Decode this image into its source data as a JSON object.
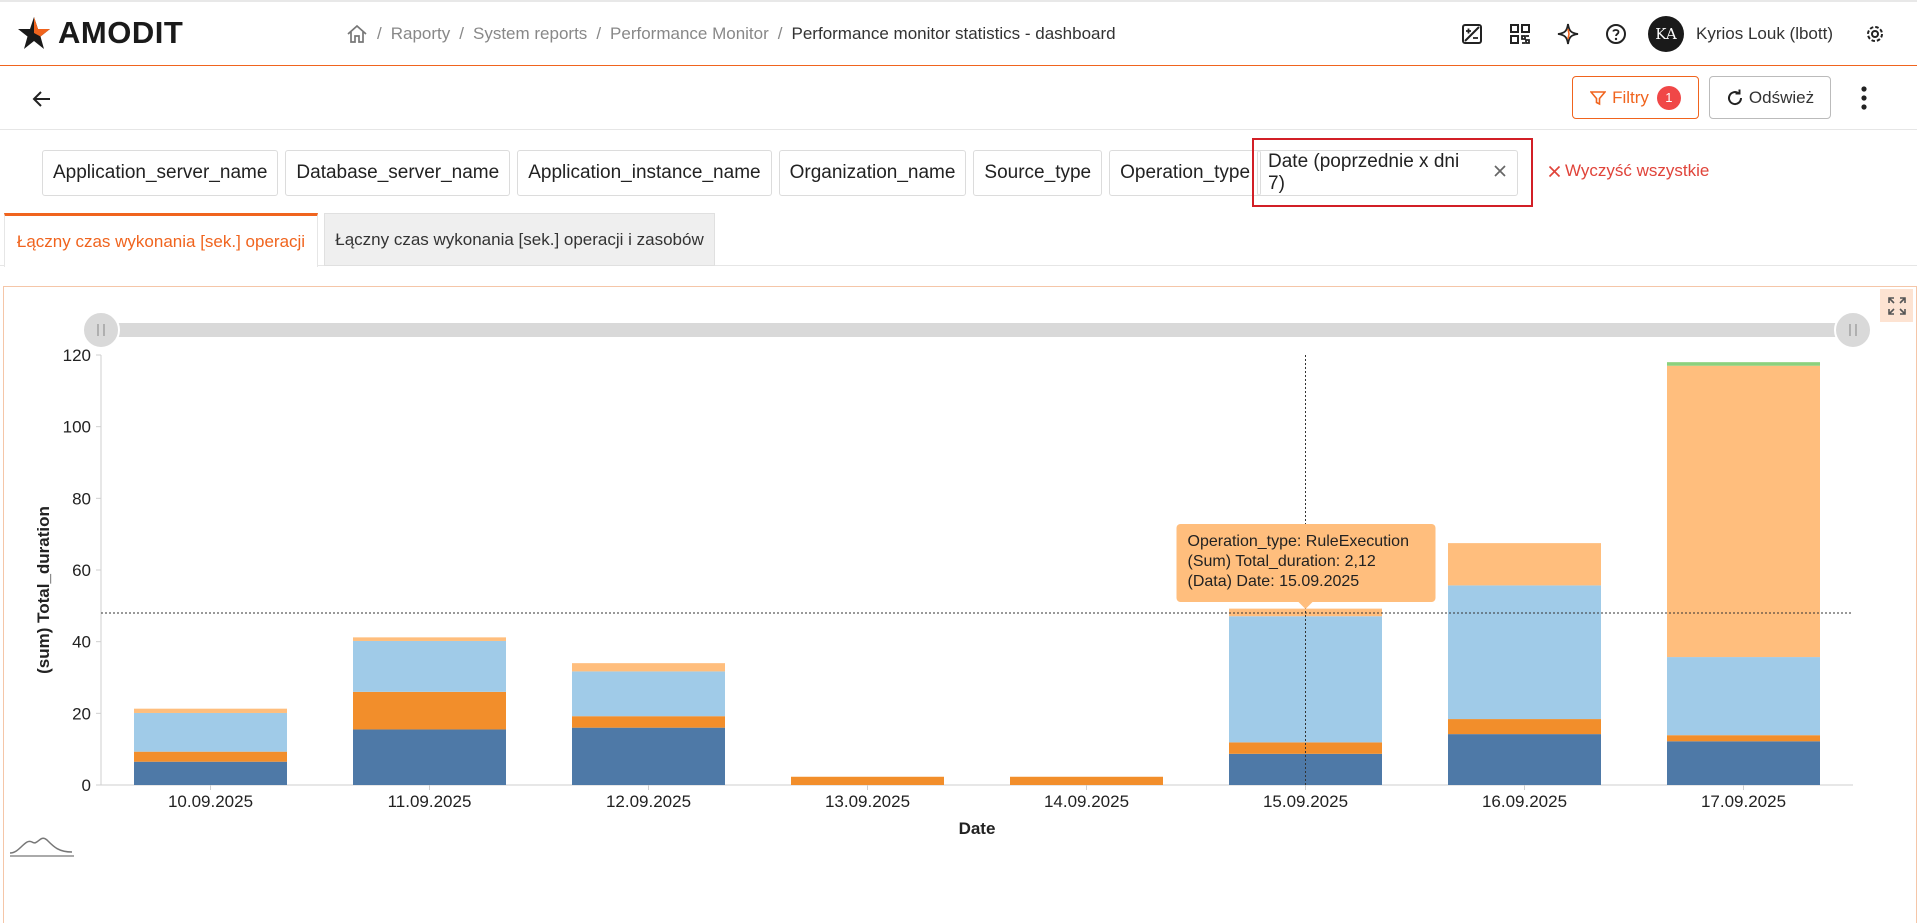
{
  "app": {
    "logo_text": "AMODIT"
  },
  "breadcrumb": {
    "items": [
      "Raporty",
      "System reports",
      "Performance Monitor"
    ],
    "current": "Performance monitor statistics - dashboard"
  },
  "header": {
    "user_initials": "KA",
    "user_name": "Kyrios Louk (lbott)"
  },
  "toolbar": {
    "filters_label": "Filtry",
    "filters_count": "1",
    "refresh_label": "Odśwież"
  },
  "filter_chips": [
    "Application_server_name",
    "Database_server_name",
    "Application_instance_name",
    "Organization_name",
    "Source_type",
    "Operation_type"
  ],
  "date_chip": {
    "label": "Date (poprzednie x dni 7)"
  },
  "clear_all_label": "Wyczyść wszystkie",
  "tabs": [
    {
      "label": "Łączny czas wykonania [sek.] operacji",
      "active": true
    },
    {
      "label": "Łączny czas wykonania [sek.] operacji i zasobów",
      "active": false
    }
  ],
  "colors": {
    "accent": "#f0641e",
    "series": [
      "#4e79a7",
      "#f28e2b",
      "#a0cbe8",
      "#ffbe7d",
      "#8cd17d"
    ],
    "tooltip_bg": "#ffbe7d"
  },
  "tooltip": {
    "lines": [
      "Operation_type: RuleExecution",
      "(Sum) Total_duration: 2,12",
      "(Data) Date: 15.09.2025"
    ]
  },
  "chart_data": {
    "type": "bar",
    "stacked": true,
    "xlabel": "Date",
    "ylabel": "(sum) Total_duration",
    "ylim": [
      0,
      120
    ],
    "yticks": [
      0,
      20,
      40,
      60,
      80,
      100,
      120
    ],
    "categories": [
      "10.09.2025",
      "11.09.2025",
      "12.09.2025",
      "13.09.2025",
      "14.09.2025",
      "15.09.2025",
      "16.09.2025",
      "17.09.2025"
    ],
    "series": [
      {
        "values": [
          6.5,
          15.5,
          16,
          0,
          0,
          8.7,
          14.2,
          12.2
        ]
      },
      {
        "values": [
          2.8,
          10.5,
          3.2,
          2.3,
          2.3,
          3.2,
          4.2,
          1.7
        ]
      },
      {
        "values": [
          10.8,
          14.2,
          12.5,
          0,
          0,
          35.2,
          37.3,
          21.8
        ]
      },
      {
        "values": [
          1.2,
          1.0,
          2.3,
          0,
          0,
          2.12,
          11.8,
          81.3
        ]
      },
      {
        "values": [
          0,
          0,
          0,
          0,
          0,
          0,
          0,
          1.0
        ]
      }
    ],
    "crosshair": {
      "x": "15.09.2025",
      "y": 48
    },
    "grid": false,
    "legend": "none"
  }
}
